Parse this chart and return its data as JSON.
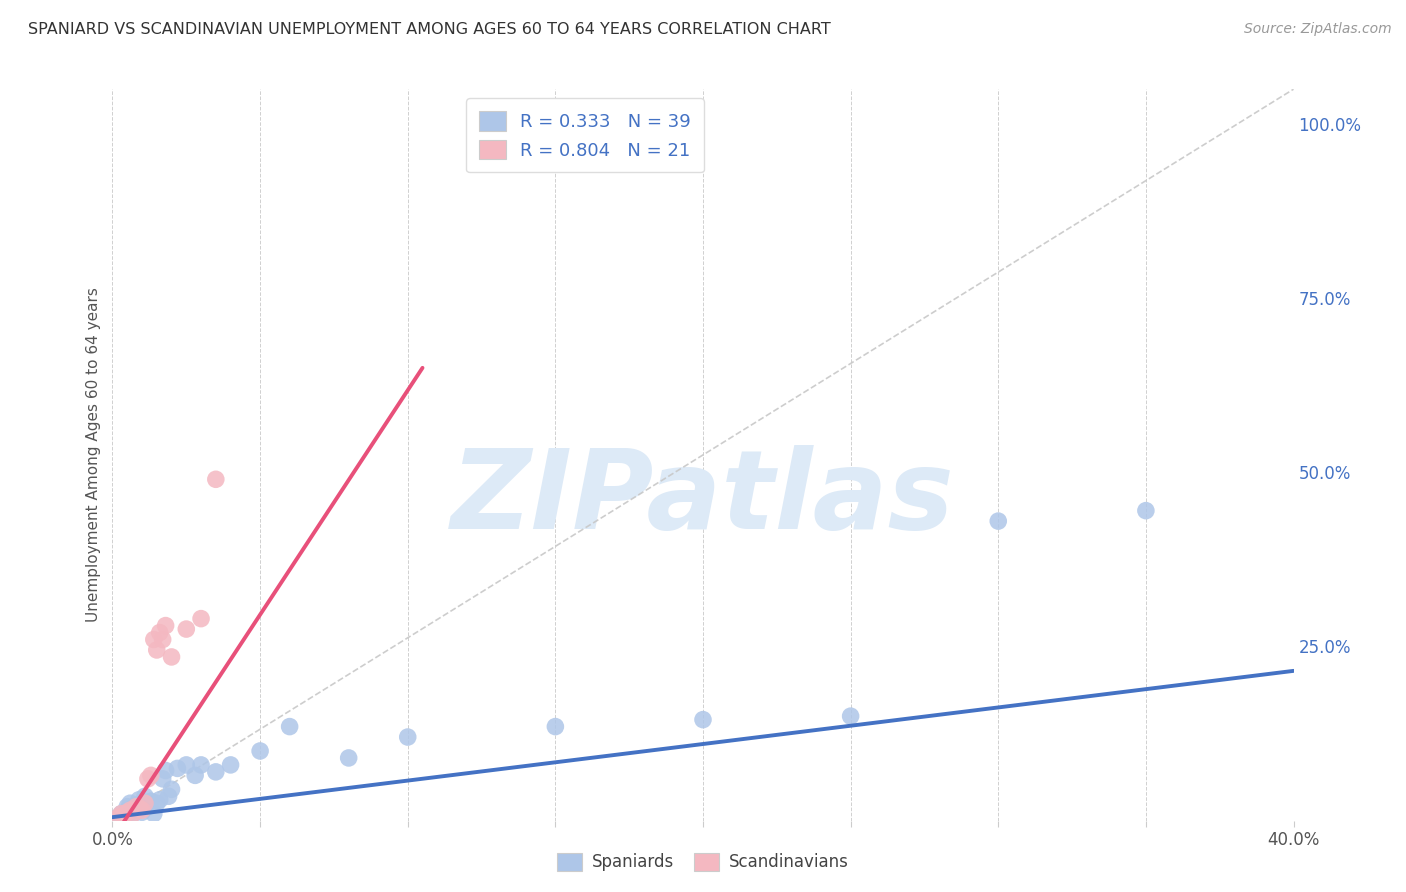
{
  "title": "SPANIARD VS SCANDINAVIAN UNEMPLOYMENT AMONG AGES 60 TO 64 YEARS CORRELATION CHART",
  "source": "Source: ZipAtlas.com",
  "ylabel": "Unemployment Among Ages 60 to 64 years",
  "xlim": [
    0.0,
    0.4
  ],
  "ylim": [
    0.0,
    1.05
  ],
  "xticks": [
    0.0,
    0.05,
    0.1,
    0.15,
    0.2,
    0.25,
    0.3,
    0.35,
    0.4
  ],
  "xticklabels": [
    "0.0%",
    "",
    "",
    "",
    "",
    "",
    "",
    "",
    "40.0%"
  ],
  "yticks_right": [
    0.25,
    0.5,
    0.75,
    1.0
  ],
  "yticklabels_right": [
    "25.0%",
    "50.0%",
    "75.0%",
    "100.0%"
  ],
  "spaniards_x": [
    0.002,
    0.003,
    0.004,
    0.005,
    0.005,
    0.006,
    0.006,
    0.007,
    0.007,
    0.008,
    0.009,
    0.009,
    0.01,
    0.01,
    0.011,
    0.012,
    0.013,
    0.014,
    0.015,
    0.016,
    0.017,
    0.018,
    0.019,
    0.02,
    0.022,
    0.025,
    0.028,
    0.03,
    0.035,
    0.04,
    0.05,
    0.06,
    0.08,
    0.1,
    0.15,
    0.2,
    0.25,
    0.3,
    0.35
  ],
  "spaniards_y": [
    0.005,
    0.01,
    0.008,
    0.015,
    0.02,
    0.012,
    0.025,
    0.01,
    0.018,
    0.022,
    0.015,
    0.03,
    0.012,
    0.025,
    0.035,
    0.02,
    0.028,
    0.01,
    0.025,
    0.03,
    0.06,
    0.072,
    0.035,
    0.045,
    0.075,
    0.08,
    0.065,
    0.08,
    0.07,
    0.08,
    0.1,
    0.135,
    0.09,
    0.12,
    0.135,
    0.145,
    0.15,
    0.43,
    0.445
  ],
  "scandinavians_x": [
    0.002,
    0.003,
    0.004,
    0.005,
    0.006,
    0.007,
    0.008,
    0.009,
    0.01,
    0.011,
    0.012,
    0.013,
    0.014,
    0.015,
    0.016,
    0.017,
    0.018,
    0.02,
    0.025,
    0.03,
    0.035
  ],
  "scandinavians_y": [
    0.005,
    0.01,
    0.008,
    0.012,
    0.015,
    0.01,
    0.02,
    0.018,
    0.015,
    0.025,
    0.06,
    0.065,
    0.26,
    0.245,
    0.27,
    0.26,
    0.28,
    0.235,
    0.275,
    0.29,
    0.49
  ],
  "spaniard_trendline_x": [
    0.0,
    0.4
  ],
  "spaniard_trendline_y": [
    0.005,
    0.215
  ],
  "scandinavian_trendline_x": [
    0.001,
    0.105
  ],
  "scandinavian_trendline_y": [
    -0.02,
    0.65
  ],
  "spaniards_R": 0.333,
  "spaniards_N": 39,
  "scandinavians_R": 0.804,
  "scandinavians_N": 21,
  "spaniard_color": "#aec6e8",
  "scandinavian_color": "#f4b8c1",
  "spaniard_line_color": "#4472c4",
  "scandinavian_line_color": "#e8507a",
  "diagonal_color": "#c8c8c8",
  "watermark_color": "#ddeaf7",
  "watermark_text": "ZIPatlas",
  "background_color": "#ffffff",
  "title_color": "#333333",
  "source_color": "#999999",
  "right_axis_color": "#4472c4",
  "legend_R_color": "#4472c4"
}
